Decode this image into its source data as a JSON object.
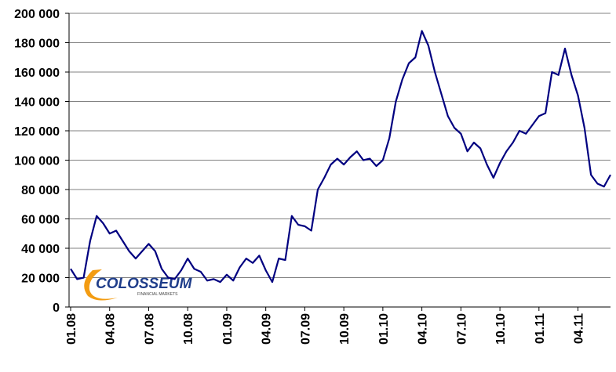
{
  "chart_data": {
    "type": "line",
    "logo": {
      "name": "COLOSSEUM",
      "tagline": "FINANCIAL MARKETS"
    },
    "categories": [
      "01.08",
      null,
      null,
      null,
      null,
      null,
      "04.08",
      null,
      null,
      null,
      null,
      null,
      "07.08",
      null,
      null,
      null,
      null,
      null,
      "10.08",
      null,
      null,
      null,
      null,
      null,
      "01.09",
      null,
      null,
      null,
      null,
      null,
      "04.09",
      null,
      null,
      null,
      null,
      null,
      "07.09",
      null,
      null,
      null,
      null,
      null,
      "10.09",
      null,
      null,
      null,
      null,
      null,
      "01.10",
      null,
      null,
      null,
      null,
      null,
      "04.10",
      null,
      null,
      null,
      null,
      null,
      "07.10",
      null,
      null,
      null,
      null,
      null,
      "10.10",
      null,
      null,
      null,
      null,
      null,
      "01.11",
      null,
      null,
      null,
      null,
      null,
      "04.11",
      null,
      null,
      null,
      null,
      null
    ],
    "series": [
      {
        "color": "#000080",
        "values": [
          26000,
          19000,
          20000,
          45000,
          62000,
          57000,
          50000,
          52000,
          45000,
          38000,
          33000,
          38000,
          43000,
          38000,
          26000,
          20000,
          19000,
          25000,
          33000,
          26000,
          24000,
          18000,
          19000,
          17000,
          22000,
          18000,
          27000,
          33000,
          30000,
          35000,
          25000,
          17000,
          33000,
          32000,
          62000,
          56000,
          55000,
          52000,
          80000,
          88000,
          97000,
          101000,
          97000,
          102000,
          106000,
          100000,
          101000,
          96000,
          100000,
          115000,
          140000,
          155000,
          166000,
          170000,
          188000,
          178000,
          160000,
          145000,
          130000,
          122000,
          118000,
          106000,
          112000,
          108000,
          97000,
          88000,
          98000,
          106000,
          112000,
          120000,
          118000,
          124000,
          130000,
          132000,
          160000,
          158000,
          176000,
          158000,
          144000,
          122000,
          90000,
          84000,
          82000,
          90000
        ]
      }
    ],
    "ylim": [
      0,
      200000
    ],
    "yticks": [
      0,
      {
        "value": 20000,
        "label": "20 000"
      },
      {
        "value": 40000,
        "label": "40 000"
      },
      {
        "value": 60000,
        "label": "60 000"
      },
      {
        "value": 80000,
        "label": "80 000"
      },
      {
        "value": 100000,
        "label": "100 000"
      },
      {
        "value": 120000,
        "label": "120 000"
      },
      {
        "value": 140000,
        "label": "140 000"
      },
      {
        "value": 160000,
        "label": "160 000"
      },
      {
        "value": 180000,
        "label": "180 000"
      },
      {
        "value": 200000,
        "label": "200 000"
      }
    ],
    "grid": true
  }
}
